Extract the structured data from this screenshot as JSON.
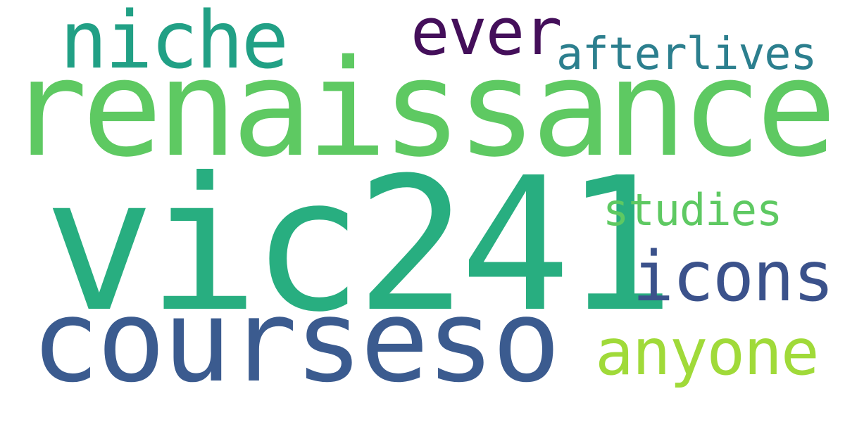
{
  "word_cloud": {
    "words": {
      "renaissance": {
        "text": "renaissance",
        "color": "#5ec962"
      },
      "vic241": {
        "text": "vic241",
        "color": "#28ae80"
      },
      "courseso": {
        "text": "courseso",
        "color": "#3b5b8f"
      },
      "niche": {
        "text": "niche",
        "color": "#21a085"
      },
      "ever": {
        "text": "ever",
        "color": "#440f5a"
      },
      "afterlives": {
        "text": "afterlives",
        "color": "#2c7f8e"
      },
      "studies": {
        "text": "studies",
        "color": "#5ec962"
      },
      "icons": {
        "text": "icons",
        "color": "#3b528b"
      },
      "anyone": {
        "text": "anyone",
        "color": "#a0da39"
      }
    }
  }
}
